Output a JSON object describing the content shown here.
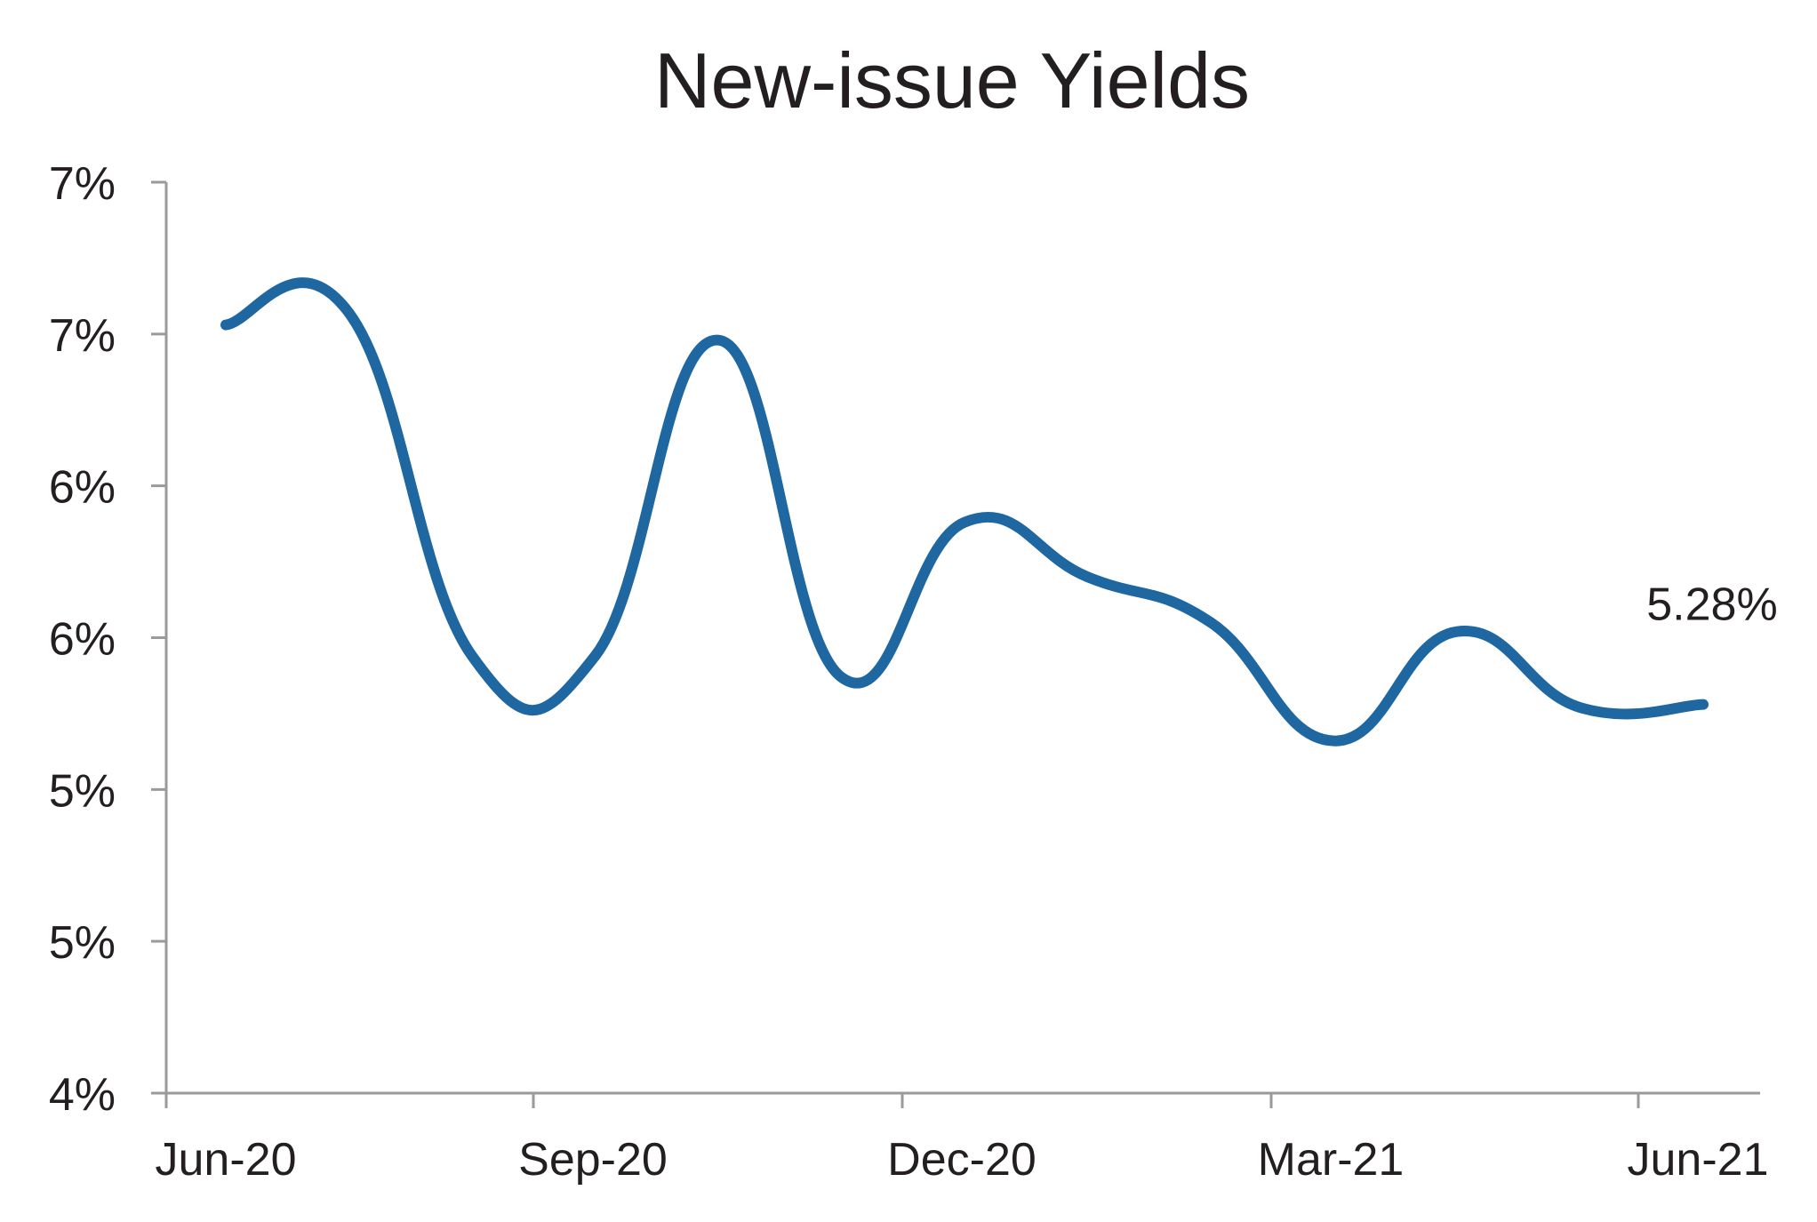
{
  "chart_data": {
    "type": "line",
    "title": "New-issue Yields",
    "xlabel": "",
    "ylabel": "",
    "x_tick_labels": [
      "Jun-20",
      "Sep-20",
      "Dec-20",
      "Mar-21",
      "Jun-21"
    ],
    "y_tick_labels": [
      "4%",
      "5%",
      "5%",
      "6%",
      "6%",
      "7%",
      "7%"
    ],
    "ylim": [
      4.0,
      7.0
    ],
    "x_domain": [
      "2020-06",
      "2021-07"
    ],
    "grid": false,
    "legend": "none",
    "series": [
      {
        "color": "#1f67a0",
        "points": [
          {
            "x": "2020-06",
            "y": 6.53
          },
          {
            "x": "2020-07",
            "y": 6.57
          },
          {
            "x": "2020-08",
            "y": 5.44
          },
          {
            "x": "2020-09",
            "y": 5.44
          },
          {
            "x": "2020-10",
            "y": 6.48
          },
          {
            "x": "2020-11",
            "y": 5.37
          },
          {
            "x": "2020-12",
            "y": 5.88
          },
          {
            "x": "2021-01",
            "y": 5.7
          },
          {
            "x": "2021-02",
            "y": 5.55
          },
          {
            "x": "2021-03",
            "y": 5.16
          },
          {
            "x": "2021-04",
            "y": 5.52
          },
          {
            "x": "2021-05",
            "y": 5.27
          },
          {
            "x": "2021-06",
            "y": 5.28
          }
        ]
      }
    ],
    "annotations": [
      {
        "text": "5.28%",
        "x": "2021-06",
        "y": 5.28
      }
    ]
  }
}
